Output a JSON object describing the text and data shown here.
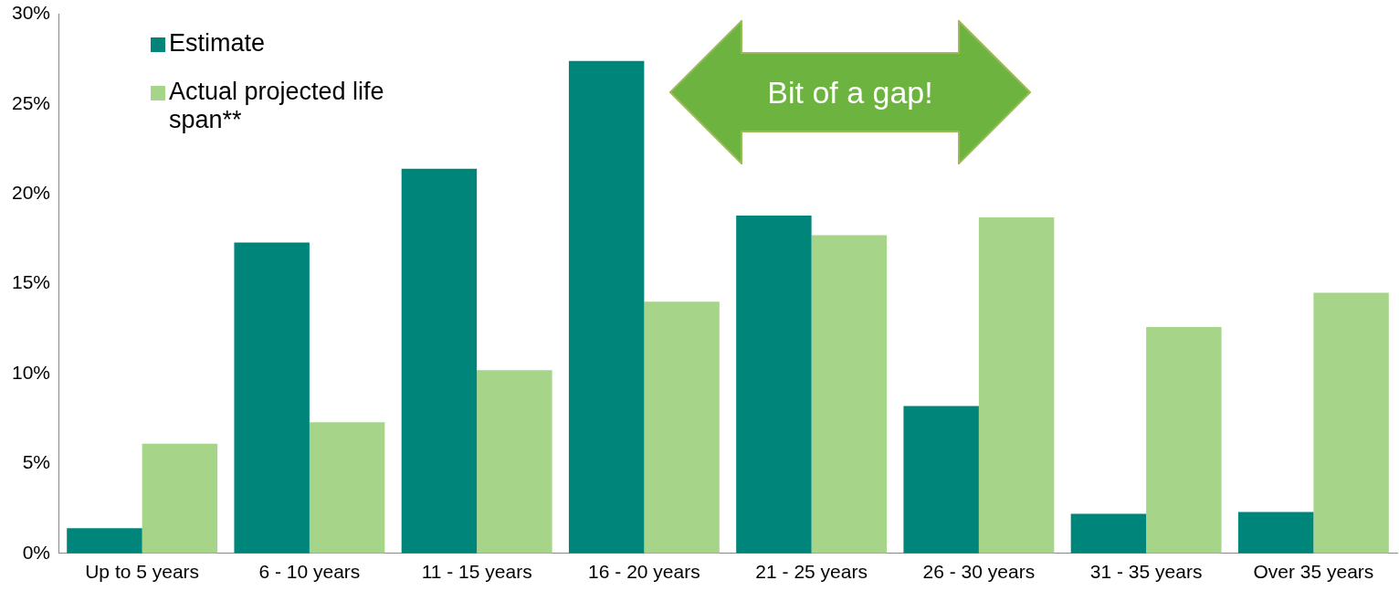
{
  "chart_data": {
    "type": "bar",
    "categories": [
      "Up to 5 years",
      "6 - 10 years",
      "11 - 15 years",
      "16 - 20 years",
      "21 - 25 years",
      "26 - 30 years",
      "31 - 35 years",
      "Over 35 years"
    ],
    "series": [
      {
        "name": "Estimate",
        "color": "#00857a",
        "values": [
          1.4,
          17.3,
          21.4,
          27.4,
          18.8,
          8.2,
          2.2,
          2.3
        ]
      },
      {
        "name": "Actual projected life span**",
        "color": "#a6d58a",
        "values": [
          6.1,
          7.3,
          10.2,
          14.0,
          17.7,
          18.7,
          12.6,
          14.5
        ]
      }
    ],
    "ylim": [
      0,
      30
    ],
    "yticks": [
      {
        "value": 0,
        "label": "0%"
      },
      {
        "value": 5,
        "label": "5%"
      },
      {
        "value": 10,
        "label": "10%"
      },
      {
        "value": 15,
        "label": "15%"
      },
      {
        "value": 20,
        "label": "20%"
      },
      {
        "value": 25,
        "label": "25%"
      },
      {
        "value": 30,
        "label": "30%"
      }
    ],
    "annotations": [
      "Bit of a gap!"
    ],
    "legend": "top left",
    "grid": false
  }
}
